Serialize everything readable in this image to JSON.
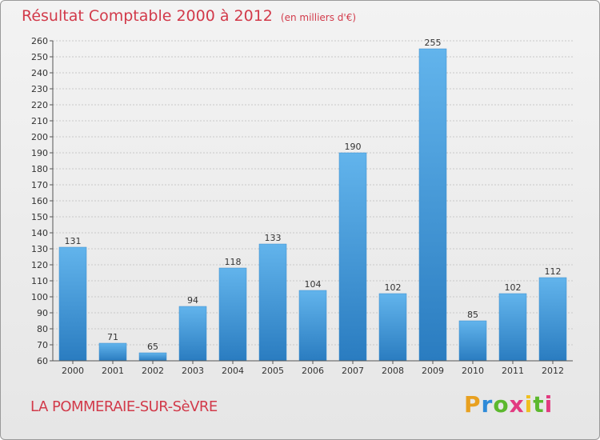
{
  "title": "Résultat Comptable 2000 à 2012",
  "unit": "(en milliers d'€)",
  "commune": "LA POMMERAIE-SUR-SèVRE",
  "logo": {
    "letters": [
      "P",
      "r",
      "o",
      "x",
      "i",
      "t",
      "i"
    ]
  },
  "colors": {
    "title": "#d23a4a",
    "bar_light": "#62b4ec",
    "bar_dark": "#2a7cc0",
    "grid": "#c8c8c8"
  },
  "chart_data": {
    "type": "bar",
    "title": "Résultat Comptable 2000 à 2012",
    "ylabel": "en milliers d'€",
    "xlabel": "",
    "categories": [
      "2000",
      "2001",
      "2002",
      "2003",
      "2004",
      "2005",
      "2006",
      "2007",
      "2008",
      "2009",
      "2010",
      "2011",
      "2012"
    ],
    "values": [
      131,
      71,
      65,
      94,
      118,
      133,
      104,
      190,
      102,
      255,
      85,
      102,
      112
    ],
    "ylim": [
      60,
      260
    ],
    "ytick_step": 10,
    "grid": true
  }
}
